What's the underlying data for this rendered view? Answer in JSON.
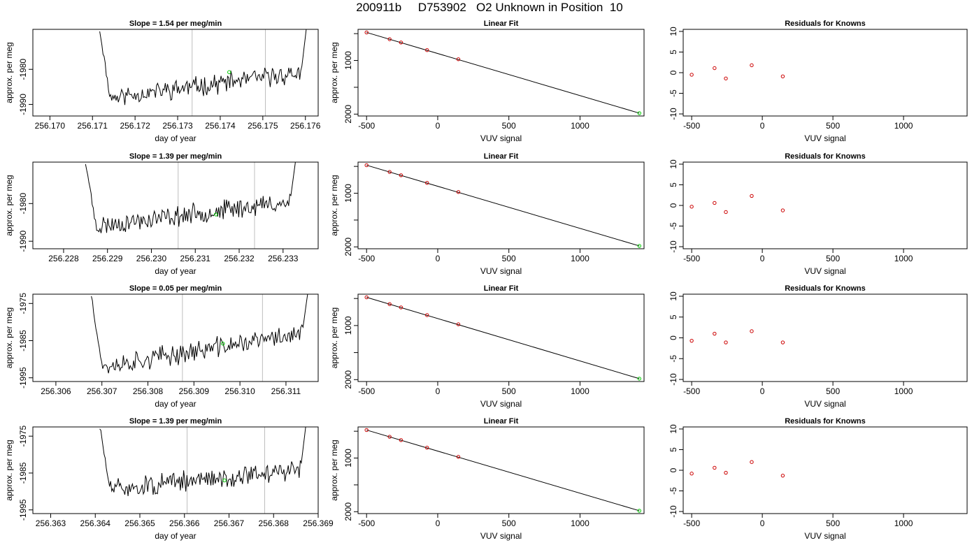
{
  "figure": {
    "title": "200911b     D753902   O2 Unknown in Position  10",
    "colors": {
      "trace": "#000000",
      "vline": "#bebebe",
      "known_point": "#cc0000",
      "unknown_point": "#00cc00"
    }
  },
  "chart_data": [
    {
      "type": "line",
      "row": 0,
      "col": 0,
      "title": "Slope =  1.54  per meg/min",
      "xlabel": "day of year",
      "ylabel": "approx. per meg",
      "xlim": [
        256.1696,
        256.1763
      ],
      "ylim": [
        -1993.3,
        -1968.6
      ],
      "x_ticks": [
        "256.170",
        "256.171",
        "256.172",
        "256.173",
        "256.174",
        "256.175",
        "256.176"
      ],
      "y_ticks": [
        -1990,
        -1980
      ],
      "vlines": [
        256.17334,
        256.17506
      ],
      "trace": {
        "x_start": 256.17117,
        "x_end": 256.17602,
        "n": 190,
        "dip_start": -1968.6,
        "base": -1988.0,
        "end_level": -1981.0,
        "rise_to": -1968.6,
        "noise": 2.2,
        "seed": 11
      },
      "unknown_point": {
        "x": 256.17421,
        "y": -1980.8
      }
    },
    {
      "type": "scatter",
      "row": 0,
      "col": 1,
      "title": "Linear Fit",
      "xlabel": "VUV signal",
      "ylabel": "approx. per meg",
      "xlim": [
        -560,
        1450
      ],
      "ylim": [
        -2035,
        -420
      ],
      "x_ticks": [
        -500,
        0,
        500,
        1000
      ],
      "y_ticks": [
        -2000,
        -1500,
        -1000,
        -500
      ],
      "y_tick_labels": [
        "2000",
        "",
        "1000",
        ""
      ],
      "knowns": [
        {
          "x": -500,
          "y": -478
        },
        {
          "x": -338,
          "y": -604
        },
        {
          "x": -258,
          "y": -665
        },
        {
          "x": -75,
          "y": -807
        },
        {
          "x": 145,
          "y": -977
        }
      ],
      "unknown": {
        "x": 1417,
        "y": -1982
      },
      "fit": {
        "x": [
          -500,
          1417
        ],
        "y": [
          -478,
          -1982
        ]
      }
    },
    {
      "type": "scatter",
      "row": 0,
      "col": 2,
      "title": "Residuals for Knowns",
      "xlabel": "VUV signal",
      "ylabel": "",
      "xlim": [
        -560,
        1450
      ],
      "ylim": [
        -10.5,
        10.5
      ],
      "x_ticks": [
        -500,
        0,
        500,
        1000
      ],
      "y_ticks": [
        -10,
        -5,
        0,
        5,
        10
      ],
      "points": [
        {
          "x": -500,
          "y": -0.5
        },
        {
          "x": -338,
          "y": 1.1
        },
        {
          "x": -258,
          "y": -1.4
        },
        {
          "x": -75,
          "y": 1.8
        },
        {
          "x": 145,
          "y": -0.9
        }
      ]
    },
    {
      "type": "line",
      "row": 1,
      "col": 0,
      "title": "Slope =  1.39  per meg/min",
      "xlabel": "day of year",
      "ylabel": "approx. per meg",
      "xlim": [
        256.2273,
        256.2338
      ],
      "ylim": [
        -1992.0,
        -1969.0
      ],
      "x_ticks": [
        "256.228",
        "256.229",
        "256.230",
        "256.231",
        "256.232",
        "256.233"
      ],
      "y_ticks": [
        -1990,
        -1980
      ],
      "vlines": [
        256.23061,
        256.23235
      ],
      "trace": {
        "x_start": 256.2285,
        "x_end": 256.23328,
        "n": 190,
        "dip_start": -1969.0,
        "base": -1986.0,
        "end_level": -1979.5,
        "rise_to": -1969.0,
        "noise": 2.1,
        "seed": 23
      },
      "unknown_point": {
        "x": 256.23147,
        "y": -1982.9
      }
    },
    {
      "type": "scatter",
      "row": 1,
      "col": 1,
      "title": "Linear Fit",
      "xlabel": "VUV signal",
      "ylabel": "approx. per meg",
      "xlim": [
        -560,
        1450
      ],
      "ylim": [
        -2035,
        -420
      ],
      "x_ticks": [
        -500,
        0,
        500,
        1000
      ],
      "y_ticks": [
        -2000,
        -1500,
        -1000,
        -500
      ],
      "y_tick_labels": [
        "2000",
        "",
        "1000",
        ""
      ],
      "knowns": [
        {
          "x": -500,
          "y": -478
        },
        {
          "x": -338,
          "y": -604
        },
        {
          "x": -258,
          "y": -665
        },
        {
          "x": -75,
          "y": -807
        },
        {
          "x": 145,
          "y": -977
        }
      ],
      "unknown": {
        "x": 1417,
        "y": -1982
      },
      "fit": {
        "x": [
          -500,
          1417
        ],
        "y": [
          -478,
          -1982
        ]
      }
    },
    {
      "type": "scatter",
      "row": 1,
      "col": 2,
      "title": "Residuals for Knowns",
      "xlabel": "VUV signal",
      "ylabel": "",
      "xlim": [
        -560,
        1450
      ],
      "ylim": [
        -10.5,
        10.5
      ],
      "x_ticks": [
        -500,
        0,
        500,
        1000
      ],
      "y_ticks": [
        -10,
        -5,
        0,
        5,
        10
      ],
      "points": [
        {
          "x": -500,
          "y": -0.3
        },
        {
          "x": -338,
          "y": 0.6
        },
        {
          "x": -258,
          "y": -1.6
        },
        {
          "x": -75,
          "y": 2.3
        },
        {
          "x": 145,
          "y": -1.2
        }
      ]
    },
    {
      "type": "line",
      "row": 2,
      "col": 0,
      "title": "Slope =  0.05  per meg/min",
      "xlabel": "day of year",
      "ylabel": "approx. per meg",
      "xlim": [
        256.3055,
        256.3117
      ],
      "ylim": [
        -1996.0,
        -1972.5
      ],
      "x_ticks": [
        "256.306",
        "256.307",
        "256.308",
        "256.309",
        "256.310",
        "256.311"
      ],
      "y_ticks": [
        -1995,
        -1985,
        -1975
      ],
      "vlines": [
        256.30875,
        256.31049
      ],
      "trace": {
        "x_start": 256.30677,
        "x_end": 256.31147,
        "n": 190,
        "dip_start": -1972.5,
        "base": -1992.0,
        "end_level": -1983.0,
        "rise_to": -1972.5,
        "noise": 2.2,
        "seed": 37
      },
      "unknown_point": {
        "x": 256.30963,
        "y": -1985.8
      }
    },
    {
      "type": "scatter",
      "row": 2,
      "col": 1,
      "title": "Linear Fit",
      "xlabel": "VUV signal",
      "ylabel": "approx. per meg",
      "xlim": [
        -560,
        1450
      ],
      "ylim": [
        -2035,
        -420
      ],
      "x_ticks": [
        -500,
        0,
        500,
        1000
      ],
      "y_ticks": [
        -2000,
        -1500,
        -1000,
        -500
      ],
      "y_tick_labels": [
        "2000",
        "",
        "1000",
        ""
      ],
      "knowns": [
        {
          "x": -500,
          "y": -478
        },
        {
          "x": -338,
          "y": -604
        },
        {
          "x": -258,
          "y": -665
        },
        {
          "x": -75,
          "y": -807
        },
        {
          "x": 145,
          "y": -977
        }
      ],
      "unknown": {
        "x": 1417,
        "y": -1982
      },
      "fit": {
        "x": [
          -500,
          1417
        ],
        "y": [
          -478,
          -1982
        ]
      }
    },
    {
      "type": "scatter",
      "row": 2,
      "col": 2,
      "title": "Residuals for Knowns",
      "xlabel": "VUV signal",
      "ylabel": "",
      "xlim": [
        -560,
        1450
      ],
      "ylim": [
        -10.5,
        10.5
      ],
      "x_ticks": [
        -500,
        0,
        500,
        1000
      ],
      "y_ticks": [
        -10,
        -5,
        0,
        5,
        10
      ],
      "points": [
        {
          "x": -500,
          "y": -0.7
        },
        {
          "x": -338,
          "y": 1.0
        },
        {
          "x": -258,
          "y": -1.1
        },
        {
          "x": -75,
          "y": 1.6
        },
        {
          "x": 145,
          "y": -1.1
        }
      ]
    },
    {
      "type": "line",
      "row": 3,
      "col": 0,
      "title": "Slope =  1.39  per meg/min",
      "xlabel": "day of year",
      "ylabel": "approx. per meg",
      "xlim": [
        256.3626,
        256.369
      ],
      "ylim": [
        -1996.0,
        -1972.5
      ],
      "x_ticks": [
        "256.363",
        "256.364",
        "256.365",
        "256.366",
        "256.367",
        "256.368",
        "256.369"
      ],
      "y_ticks": [
        -1995,
        -1985,
        -1975
      ],
      "vlines": [
        256.36606,
        256.3678
      ],
      "trace": {
        "x_start": 256.3641,
        "x_end": 256.36872,
        "n": 190,
        "dip_start": -1972.5,
        "base": -1989.5,
        "end_level": -1984.0,
        "rise_to": -1972.5,
        "noise": 2.2,
        "seed": 51
      },
      "unknown_point": {
        "x": 256.3669,
        "y": -1987.0
      }
    },
    {
      "type": "scatter",
      "row": 3,
      "col": 1,
      "title": "Linear Fit",
      "xlabel": "VUV signal",
      "ylabel": "approx. per meg",
      "xlim": [
        -560,
        1450
      ],
      "ylim": [
        -2035,
        -420
      ],
      "x_ticks": [
        -500,
        0,
        500,
        1000
      ],
      "y_ticks": [
        -2000,
        -1500,
        -1000,
        -500
      ],
      "y_tick_labels": [
        "2000",
        "",
        "1000",
        ""
      ],
      "knowns": [
        {
          "x": -500,
          "y": -478
        },
        {
          "x": -338,
          "y": -604
        },
        {
          "x": -258,
          "y": -665
        },
        {
          "x": -75,
          "y": -807
        },
        {
          "x": 145,
          "y": -977
        }
      ],
      "unknown": {
        "x": 1417,
        "y": -1982
      },
      "fit": {
        "x": [
          -500,
          1417
        ],
        "y": [
          -478,
          -1982
        ]
      }
    },
    {
      "type": "scatter",
      "row": 3,
      "col": 2,
      "title": "Residuals for Knowns",
      "xlabel": "VUV signal",
      "ylabel": "",
      "xlim": [
        -560,
        1450
      ],
      "ylim": [
        -10.5,
        10.5
      ],
      "x_ticks": [
        -500,
        0,
        500,
        1000
      ],
      "y_ticks": [
        -10,
        -5,
        0,
        5,
        10
      ],
      "points": [
        {
          "x": -500,
          "y": -0.8
        },
        {
          "x": -338,
          "y": 0.6
        },
        {
          "x": -258,
          "y": -0.6
        },
        {
          "x": -75,
          "y": 2.0
        },
        {
          "x": 145,
          "y": -1.3
        }
      ]
    }
  ]
}
